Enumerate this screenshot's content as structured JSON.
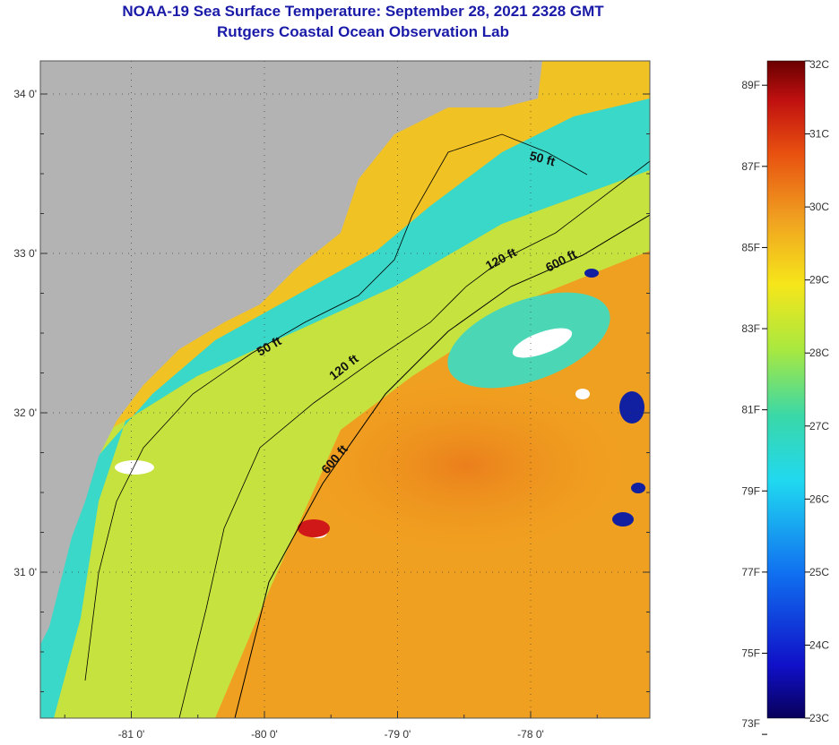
{
  "header": {
    "title": "NOAA-19 Sea Surface Temperature:  September 28, 2021 2328 GMT",
    "subtitle": "Rutgers Coastal Ocean Observation Lab"
  },
  "map": {
    "lon_ticks": [
      {
        "value": -81,
        "label": "-81 0'"
      },
      {
        "value": -80,
        "label": "-80 0'"
      },
      {
        "value": -79,
        "label": "-79 0'"
      },
      {
        "value": -78,
        "label": "-78 0'"
      }
    ],
    "lat_ticks": [
      {
        "value": 34,
        "label": "34 0'"
      },
      {
        "value": 33,
        "label": "33 0'"
      },
      {
        "value": 32,
        "label": "32 0'"
      },
      {
        "value": 31,
        "label": "31 0'"
      }
    ],
    "contours": [
      {
        "label": "50 ft"
      },
      {
        "label": "50 ft"
      },
      {
        "label": "120 ft"
      },
      {
        "label": "120 ft"
      },
      {
        "label": "600 ft"
      },
      {
        "label": "600 ft"
      }
    ],
    "colors": {
      "land": "#b3b3b3",
      "cloud": "#ffffff",
      "shelf": "#33d9cc",
      "mid": "#c8e646",
      "warm": "#f0a020",
      "hot": "#e06010"
    }
  },
  "colorbar": {
    "range_c": [
      23,
      32
    ],
    "celsius_labels": [
      "32C",
      "31C",
      "30C",
      "29C",
      "28C",
      "27C",
      "26C",
      "25C",
      "24C",
      "23C"
    ],
    "fahrenheit_labels": [
      "89F",
      "87F",
      "85F",
      "83F",
      "81F",
      "79F",
      "77F",
      "75F",
      "73F"
    ]
  }
}
